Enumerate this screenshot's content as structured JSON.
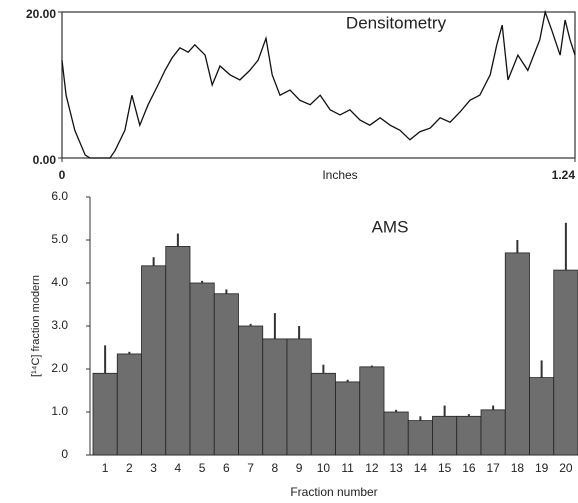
{
  "chart_data": [
    {
      "type": "line",
      "title": "Densitometry",
      "xlabel": "Inches",
      "x": [
        0,
        0.01,
        0.031,
        0.056,
        0.068,
        0.116,
        0.128,
        0.152,
        0.169,
        0.188,
        0.208,
        0.232,
        0.249,
        0.266,
        0.285,
        0.305,
        0.321,
        0.346,
        0.363,
        0.382,
        0.406,
        0.43,
        0.454,
        0.474,
        0.493,
        0.508,
        0.527,
        0.551,
        0.575,
        0.6,
        0.624,
        0.648,
        0.672,
        0.696,
        0.72,
        0.744,
        0.769,
        0.793,
        0.817,
        0.841,
        0.865,
        0.89,
        0.914,
        0.938,
        0.962,
        0.986,
        1.01,
        1.035,
        1.051,
        1.064,
        1.078,
        1.102,
        1.126,
        1.155,
        1.168,
        1.184,
        1.204,
        1.216,
        1.228,
        1.24
      ],
      "values": [
        13.4,
        8.6,
        3.8,
        0.4,
        0,
        0,
        1,
        3.8,
        8.6,
        4.5,
        7.3,
        10,
        12,
        13.7,
        15.1,
        14.5,
        15.5,
        14.1,
        10,
        12.6,
        11.4,
        10.7,
        12,
        13.4,
        16.4,
        11.4,
        8.6,
        9.3,
        7.9,
        7.3,
        8.6,
        6.6,
        5.9,
        6.6,
        5.2,
        4.5,
        5.5,
        4.5,
        3.8,
        2.5,
        3.6,
        4.1,
        5.5,
        4.9,
        6.3,
        7.9,
        8.6,
        11.4,
        15.5,
        18.2,
        10.7,
        14.1,
        12,
        16.2,
        20,
        17.5,
        14.1,
        18.9,
        16.2,
        14.1
      ],
      "color": "#111111",
      "xlim": [
        0,
        1.24
      ],
      "xticks": [
        0,
        1.24
      ],
      "ylim": [
        0,
        20
      ],
      "yticks": [
        {
          "value": 0,
          "label": "0.00"
        },
        {
          "value": 20,
          "label": "20.00"
        }
      ]
    },
    {
      "type": "bar",
      "title": "AMS",
      "xlabel": "Fraction number",
      "ylabel": "[¹⁴C] fraction modern",
      "categories": [
        "1",
        "2",
        "3",
        "4",
        "5",
        "6",
        "7",
        "8",
        "9",
        "10",
        "11",
        "12",
        "13",
        "14",
        "15",
        "16",
        "17",
        "18",
        "19",
        "20"
      ],
      "values": [
        1.9,
        2.35,
        4.4,
        4.85,
        4.0,
        3.75,
        3.0,
        2.7,
        2.7,
        1.9,
        1.7,
        2.05,
        1.0,
        0.8,
        0.9,
        0.9,
        1.05,
        4.7,
        1.8,
        4.3
      ],
      "errors": [
        0.65,
        0.05,
        0.2,
        0.3,
        0.05,
        0.1,
        0.05,
        0.6,
        0.3,
        0.2,
        0.05,
        0.03,
        0.05,
        0.1,
        0.25,
        0.05,
        0.1,
        0.3,
        0.4,
        1.1
      ],
      "color": "#6e6e6e",
      "ylim": [
        0,
        6
      ],
      "yticks": [
        0,
        {
          "value": 1,
          "label": "1.0"
        },
        {
          "value": 2,
          "label": "2.0"
        },
        {
          "value": 3,
          "label": "3.0"
        },
        {
          "value": 4,
          "label": "4.0"
        },
        {
          "value": 5,
          "label": "5.0"
        },
        {
          "value": 6,
          "label": "6.0"
        }
      ]
    }
  ]
}
